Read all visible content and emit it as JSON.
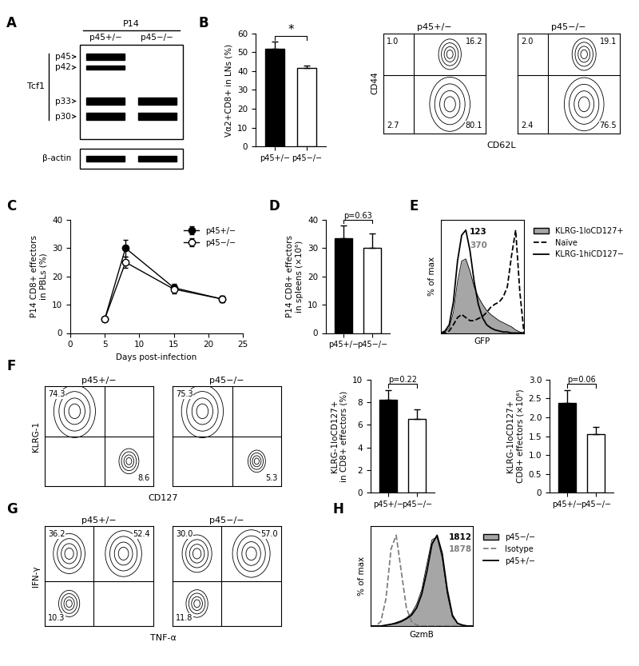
{
  "chart_data": [
    {
      "type": "blot",
      "panel_label": "A",
      "title": "P14",
      "lanes": [
        "p45+/−",
        "p45−/−"
      ],
      "protein": "Tcf1",
      "bands": [
        "p45",
        "p42",
        "p33",
        "p30"
      ],
      "band_present": [
        [
          true,
          false
        ],
        [
          true,
          false
        ],
        [
          true,
          true
        ],
        [
          true,
          true
        ]
      ],
      "loading_control": "β-actin",
      "loading_present": [
        true,
        true
      ]
    },
    {
      "type": "bar",
      "panel_label": "B",
      "categories": [
        "p45+/−",
        "p45−/−"
      ],
      "values": [
        52,
        41.5
      ],
      "errors": [
        3.5,
        1.2
      ],
      "colors": [
        "#000000",
        "#ffffff"
      ],
      "ylabel": "Vα2+CD8+ in LNs (%)",
      "ylim": [
        0,
        60
      ],
      "yticks": [
        0,
        10,
        20,
        30,
        40,
        50,
        60
      ],
      "annotation": "*"
    },
    {
      "type": "flow",
      "xlabel": "CD62L",
      "ylabel": "CD44",
      "tick_labels": false,
      "plots": [
        {
          "title": "p45+/−",
          "quadrants": {
            "upper_left": 1.0,
            "upper_right": 16.2,
            "lower_left": 2.7,
            "lower_right": 80.1
          }
        },
        {
          "title": "p45−/−",
          "quadrants": {
            "upper_left": 2.0,
            "upper_right": 19.1,
            "lower_left": 2.4,
            "lower_right": 76.5
          }
        }
      ]
    },
    {
      "type": "line",
      "panel_label": "C",
      "x": [
        5,
        8,
        15,
        22
      ],
      "series": [
        {
          "name": "p45+/−",
          "color": "#000000",
          "marker": "o",
          "line_style": "solid",
          "values": [
            5,
            30,
            16,
            12
          ],
          "errors": [
            0.5,
            3,
            1.5,
            1
          ]
        },
        {
          "name": "p45−/−",
          "color": "#ffffff",
          "marker": "o",
          "line_style": "solid",
          "values": [
            5,
            25,
            15.5,
            12
          ],
          "errors": [
            0.5,
            2,
            1.5,
            1
          ]
        }
      ],
      "xlabel": "Days post-infection",
      "ylabel": "P14 CD8+ effectors\nin PBLs (%)",
      "xlim": [
        0,
        25
      ],
      "xticks": [
        0,
        5,
        10,
        15,
        20,
        25
      ],
      "ylim": [
        0,
        40
      ],
      "yticks": [
        0,
        10,
        20,
        30,
        40
      ],
      "legend": "upper right"
    },
    {
      "type": "bar",
      "panel_label": "D",
      "categories": [
        "p45+/−",
        "p45−/−"
      ],
      "values": [
        33.5,
        30
      ],
      "errors": [
        4.5,
        5.2
      ],
      "colors": [
        "#000000",
        "#ffffff"
      ],
      "ylabel": "P14 CD8+ effectors\nin spleens (×10⁶)",
      "ylim": [
        0,
        40
      ],
      "yticks": [
        0,
        10,
        20,
        30,
        40
      ],
      "annotation": "p=0.63"
    },
    {
      "type": "histogram",
      "panel_label": "E",
      "xlabel": "GFP",
      "ylabel": "% of max",
      "tick_labels": false,
      "x": [
        0,
        5,
        10,
        15,
        20,
        25,
        30,
        35,
        40,
        45,
        50,
        55,
        60,
        65,
        70,
        75,
        80,
        85,
        90,
        95,
        100
      ],
      "xlim": [
        0,
        100
      ],
      "ylim": [
        0,
        110
      ],
      "legend": "upper left",
      "series": [
        {
          "name": "KLRG-1loCD127+",
          "type": "area",
          "color": "#a6a6a6",
          "values": [
            0,
            1,
            5,
            20,
            50,
            70,
            72,
            60,
            45,
            35,
            28,
            22,
            18,
            15,
            12,
            10,
            8,
            6,
            3,
            1,
            0
          ]
        },
        {
          "name": "Naïve",
          "type": "line",
          "line_style": "dashed",
          "color": "#000000",
          "values": [
            0,
            0,
            2,
            8,
            15,
            18,
            15,
            12,
            12,
            14,
            16,
            20,
            25,
            28,
            30,
            35,
            45,
            75,
            100,
            40,
            0
          ]
        },
        {
          "name": "KLRG-1hiCD127−",
          "type": "line",
          "line_style": "solid",
          "color": "#000000",
          "values": [
            0,
            2,
            8,
            30,
            70,
            95,
            100,
            80,
            50,
            28,
            15,
            8,
            5,
            3,
            2,
            1,
            1,
            0,
            0,
            0,
            0
          ]
        }
      ],
      "mfi_values": [
        123,
        370
      ],
      "mfi_colors": [
        "#000000",
        "#808080"
      ]
    },
    {
      "type": "flow",
      "panel_label": "F",
      "xlabel": "CD127",
      "ylabel": "KLRG-1",
      "tick_labels": false,
      "plots": [
        {
          "title": "p45+/−",
          "quadrants": {
            "upper_left": 74.3,
            "lower_right": 8.6
          }
        },
        {
          "title": "p45−/−",
          "quadrants": {
            "upper_left": 75.3,
            "lower_right": 5.3
          }
        }
      ]
    },
    {
      "type": "bar",
      "categories": [
        "p45+/−",
        "p45−/−"
      ],
      "values": [
        8.2,
        6.5
      ],
      "errors": [
        0.9,
        0.9
      ],
      "colors": [
        "#000000",
        "#ffffff"
      ],
      "ylabel": "KLRG-1loCD127+\nin CD8+ effectors (%)",
      "ylim": [
        0,
        10
      ],
      "yticks": [
        0,
        2,
        4,
        6,
        8,
        10
      ],
      "annotation": "p=0.22"
    },
    {
      "type": "bar",
      "categories": [
        "p45+/−",
        "p45−/−"
      ],
      "values": [
        2.38,
        1.55
      ],
      "errors": [
        0.35,
        0.2
      ],
      "colors": [
        "#000000",
        "#ffffff"
      ],
      "ylabel": "KLRG-1loCD127+\nCD8+ effectors (×10⁶)",
      "ylim": [
        0,
        3
      ],
      "yticks": [
        0,
        0.5,
        {
          "value": 1,
          "label": "1.0"
        },
        1.5,
        {
          "value": 2,
          "label": "2.0"
        },
        2.5,
        {
          "value": 3,
          "label": "3.0"
        }
      ],
      "annotation": "p=0.06"
    },
    {
      "type": "flow",
      "panel_label": "G",
      "xlabel": "TNF-α",
      "ylabel": "IFN-γ",
      "tick_labels": false,
      "plots": [
        {
          "title": "p45+/−",
          "quadrants": {
            "upper_left": 36.2,
            "upper_right": 52.4,
            "lower_left": 10.3
          }
        },
        {
          "title": "p45−/−",
          "quadrants": {
            "upper_left": 30.0,
            "upper_right": 57.0,
            "lower_left": 11.8
          }
        }
      ]
    },
    {
      "type": "histogram",
      "panel_label": "H",
      "xlabel": "GzmB",
      "ylabel": "% of max",
      "tick_labels": false,
      "x": [
        0,
        5,
        10,
        15,
        20,
        25,
        30,
        35,
        40,
        45,
        50,
        55,
        60,
        65,
        70,
        75,
        80,
        85,
        90,
        95,
        100
      ],
      "xlim": [
        0,
        100
      ],
      "ylim": [
        0,
        110
      ],
      "legend": "upper left",
      "series": [
        {
          "name": "p45−/−",
          "type": "area",
          "color": "#a6a6a6",
          "values": [
            0,
            0,
            0,
            1,
            2,
            4,
            6,
            9,
            14,
            24,
            40,
            68,
            95,
            98,
            75,
            35,
            10,
            3,
            1,
            0,
            0
          ]
        },
        {
          "name": "Isotype",
          "type": "line",
          "line_style": "dashed",
          "color": "#808080",
          "values": [
            0,
            0,
            5,
            30,
            85,
            100,
            60,
            20,
            5,
            1,
            0,
            0,
            0,
            0,
            0,
            0,
            0,
            0,
            0,
            0,
            0
          ]
        },
        {
          "name": "p45+/−",
          "type": "line",
          "line_style": "solid",
          "color": "#000000",
          "values": [
            0,
            0,
            0,
            1,
            2,
            3,
            5,
            8,
            12,
            20,
            35,
            60,
            90,
            100,
            80,
            40,
            12,
            3,
            1,
            0,
            0
          ]
        }
      ],
      "mfi_values": [
        1812,
        1878
      ],
      "mfi_colors": [
        "#000000",
        "#808080"
      ]
    }
  ]
}
